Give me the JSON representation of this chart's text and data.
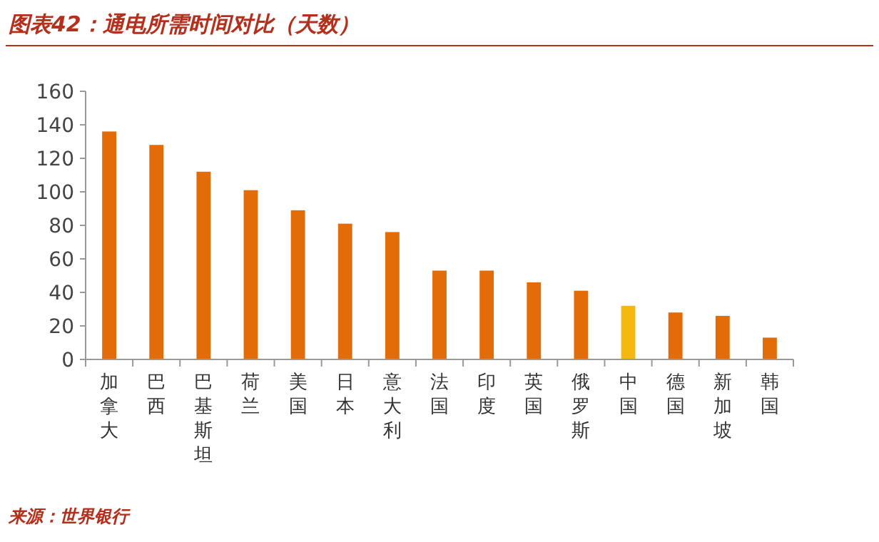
{
  "chart_data": {
    "type": "bar",
    "title": "图表42：通电所需时间对比（天数）",
    "categories": [
      "加拿大",
      "巴西",
      "巴基斯坦",
      "荷兰",
      "美国",
      "日本",
      "意大利",
      "法国",
      "印度",
      "英国",
      "俄罗斯",
      "中国",
      "德国",
      "新加坡",
      "韩国"
    ],
    "values": [
      136,
      128,
      112,
      101,
      89,
      81,
      76,
      53,
      53,
      46,
      41,
      32,
      28,
      26,
      13
    ],
    "colors": [
      "#e36c09",
      "#e36c09",
      "#e36c09",
      "#e36c09",
      "#e36c09",
      "#e36c09",
      "#e36c09",
      "#e36c09",
      "#e36c09",
      "#e36c09",
      "#e36c09",
      "#f5b80e",
      "#e36c09",
      "#e36c09",
      "#e36c09"
    ],
    "ylim": [
      0,
      160
    ],
    "yticks": [
      0,
      20,
      40,
      60,
      80,
      100,
      120,
      140,
      160
    ],
    "grid": false,
    "annotations": [
      "来源：世界银行"
    ]
  }
}
